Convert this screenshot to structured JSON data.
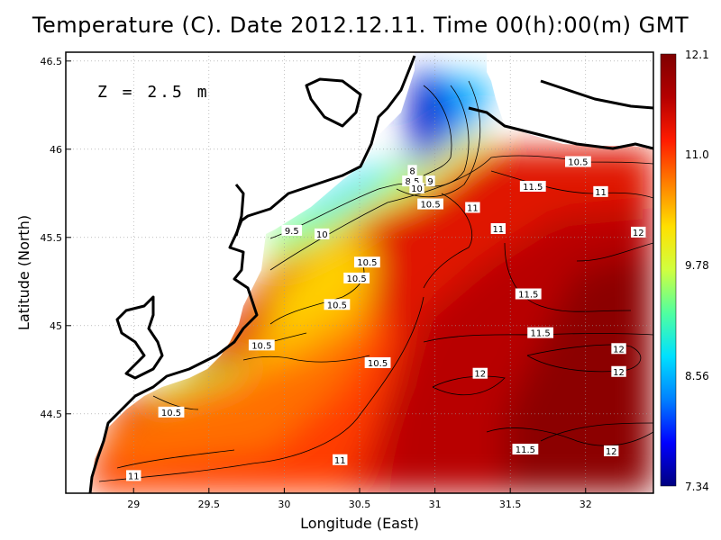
{
  "chart_data": {
    "type": "heatmap",
    "title": "Temperature (C). Date 2012.12.11. Time 00(h):00(m) GMT",
    "xlabel": "Longitude (East)",
    "ylabel": "Latitude (North)",
    "annotation": "Z = 2.5 m",
    "xlim": [
      28.55,
      32.45
    ],
    "ylim": [
      44.05,
      46.55
    ],
    "x_ticks": [
      29,
      29.5,
      30,
      30.5,
      31,
      31.5,
      32
    ],
    "x_tick_labels": [
      "29",
      "29.5",
      "30",
      "30.5",
      "31",
      "31.5",
      "32"
    ],
    "y_ticks": [
      44.5,
      45,
      45.5,
      46,
      46.5
    ],
    "y_tick_labels": [
      "44.5",
      "45",
      "45.5",
      "46",
      "46.5"
    ],
    "grid": true,
    "colorbar": {
      "min": 7.34,
      "max": 12.1,
      "tick_values": [
        12.1,
        11.0,
        9.78,
        8.56,
        7.34
      ],
      "tick_labels": [
        "12.1",
        "11.0",
        "9.78",
        "8.56",
        "7.34"
      ],
      "placement": "right",
      "colors": [
        "#00007f",
        "#0000ff",
        "#0080ff",
        "#00e0ff",
        "#50ffa0",
        "#d0ff40",
        "#ffe000",
        "#ff8000",
        "#ff1c00",
        "#b40000",
        "#7f0000"
      ]
    },
    "contour_labels": [
      {
        "x": 30.85,
        "y": 45.88,
        "text": "8"
      },
      {
        "x": 30.85,
        "y": 45.82,
        "text": "8.5"
      },
      {
        "x": 30.97,
        "y": 45.82,
        "text": "9"
      },
      {
        "x": 30.88,
        "y": 45.78,
        "text": "10"
      },
      {
        "x": 30.97,
        "y": 45.69,
        "text": "10.5"
      },
      {
        "x": 30.05,
        "y": 45.54,
        "text": "9.5"
      },
      {
        "x": 30.25,
        "y": 45.52,
        "text": "10"
      },
      {
        "x": 31.95,
        "y": 45.93,
        "text": "10.5"
      },
      {
        "x": 31.65,
        "y": 45.79,
        "text": "11.5"
      },
      {
        "x": 32.1,
        "y": 45.76,
        "text": "11"
      },
      {
        "x": 31.25,
        "y": 45.67,
        "text": "11"
      },
      {
        "x": 31.42,
        "y": 45.55,
        "text": "11"
      },
      {
        "x": 32.35,
        "y": 45.53,
        "text": "12"
      },
      {
        "x": 30.55,
        "y": 45.36,
        "text": "10.5"
      },
      {
        "x": 30.48,
        "y": 45.27,
        "text": "10.5"
      },
      {
        "x": 30.35,
        "y": 45.12,
        "text": "10.5"
      },
      {
        "x": 31.62,
        "y": 45.18,
        "text": "11.5"
      },
      {
        "x": 31.7,
        "y": 44.96,
        "text": "11.5"
      },
      {
        "x": 29.85,
        "y": 44.89,
        "text": "10.5"
      },
      {
        "x": 30.62,
        "y": 44.79,
        "text": "10.5"
      },
      {
        "x": 32.22,
        "y": 44.87,
        "text": "12"
      },
      {
        "x": 32.22,
        "y": 44.74,
        "text": "12"
      },
      {
        "x": 31.3,
        "y": 44.73,
        "text": "12"
      },
      {
        "x": 29.25,
        "y": 44.51,
        "text": "10.5"
      },
      {
        "x": 31.6,
        "y": 44.3,
        "text": "11.5"
      },
      {
        "x": 32.17,
        "y": 44.29,
        "text": "12"
      },
      {
        "x": 30.37,
        "y": 44.24,
        "text": "11"
      },
      {
        "x": 29.0,
        "y": 44.15,
        "text": "11"
      }
    ]
  }
}
